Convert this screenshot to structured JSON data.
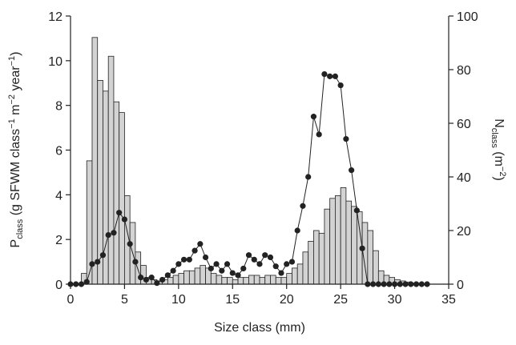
{
  "chart_data": {
    "type": "histogram+line",
    "x_label": "Size class (mm)",
    "y_label": [
      "P",
      "class",
      " (g SFWM class",
      "−1",
      " m",
      "−2",
      " year",
      "−1",
      ")"
    ],
    "y2_label": [
      "N",
      "class",
      " (m",
      "−2",
      ")"
    ],
    "xlim": [
      0,
      35
    ],
    "xticks": [
      0,
      5,
      10,
      15,
      20,
      25,
      30,
      35
    ],
    "ylim": [
      0,
      12
    ],
    "yticks": [
      0,
      2,
      4,
      6,
      8,
      10,
      12
    ],
    "y2lim": [
      0,
      100
    ],
    "y2ticks": [
      0,
      20,
      40,
      60,
      80,
      100
    ],
    "histogram": {
      "axis": "y2",
      "color": "#d3d3d3",
      "bins": [
        1.0,
        1.5,
        2.0,
        2.5,
        3.0,
        3.5,
        4.0,
        4.5,
        5.0,
        5.5,
        6.0,
        6.5,
        7.0,
        7.5,
        8.0,
        8.5,
        9.0,
        9.5,
        10.0,
        10.5,
        11.0,
        11.5,
        12.0,
        12.5,
        13.0,
        13.5,
        14.0,
        14.5,
        15.0,
        15.5,
        16.0,
        16.5,
        17.0,
        17.5,
        18.0,
        18.5,
        19.0,
        19.5,
        20.0,
        20.5,
        21.0,
        21.5,
        22.0,
        22.5,
        23.0,
        23.5,
        24.0,
        24.5,
        25.0,
        25.5,
        26.0,
        26.5,
        27.0,
        27.5,
        28.0,
        28.5,
        29.0,
        29.5,
        30.0,
        30.5,
        31.0,
        31.5,
        32.0,
        32.5
      ],
      "counts": [
        4,
        46,
        92,
        76,
        72,
        85,
        68,
        64,
        33,
        23,
        12,
        7,
        2.5,
        1.7,
        1.2,
        1.7,
        2.5,
        3.3,
        4,
        5,
        5,
        6,
        7,
        6,
        4,
        3.3,
        2.5,
        2.5,
        1.7,
        2.5,
        2.5,
        3.3,
        3.3,
        2.5,
        3.3,
        3.3,
        2.5,
        2.5,
        4,
        6,
        7.5,
        12,
        16,
        20,
        19,
        28,
        32,
        33,
        36,
        31,
        29,
        27,
        23,
        20,
        12.5,
        5,
        3.3,
        2.5,
        1.7,
        1.2,
        0.8,
        0.4,
        0.4
      ]
    },
    "line": {
      "color": "#222222",
      "x": [
        0,
        0.5,
        1,
        1.5,
        2,
        2.5,
        3,
        3.5,
        4,
        4.5,
        5,
        5.5,
        6,
        6.5,
        7,
        7.5,
        8,
        8.5,
        9,
        9.5,
        10,
        10.5,
        11,
        11.5,
        12,
        12.5,
        13,
        13.5,
        14,
        14.5,
        15,
        15.5,
        16,
        16.5,
        17,
        17.5,
        18,
        18.5,
        19,
        19.5,
        20,
        20.5,
        21,
        21.5,
        22,
        22.5,
        23,
        23.5,
        24,
        24.5,
        25,
        25.5,
        26,
        26.5,
        27,
        27.5,
        28,
        28.5,
        29,
        29.5,
        30,
        30.5,
        31,
        31.5,
        32,
        32.5,
        33
      ],
      "values": [
        0,
        0,
        0,
        0.1,
        0.9,
        1.0,
        1.3,
        2.2,
        2.3,
        3.2,
        2.9,
        1.8,
        1.0,
        0.3,
        0.2,
        0.3,
        0.05,
        0.2,
        0.4,
        0.6,
        0.9,
        1.1,
        1.1,
        1.5,
        1.8,
        1.2,
        0.7,
        0.9,
        0.6,
        0.9,
        0.5,
        0.4,
        0.7,
        1.3,
        1.1,
        0.9,
        1.3,
        1.2,
        0.8,
        0.5,
        0.9,
        1.0,
        2.4,
        3.5,
        4.8,
        7.5,
        6.7,
        9.4,
        9.3,
        9.3,
        8.9,
        6.5,
        5.1,
        3.3,
        1.6,
        0,
        0,
        0,
        0,
        0,
        0,
        0,
        0,
        0,
        0,
        0,
        0
      ]
    }
  }
}
